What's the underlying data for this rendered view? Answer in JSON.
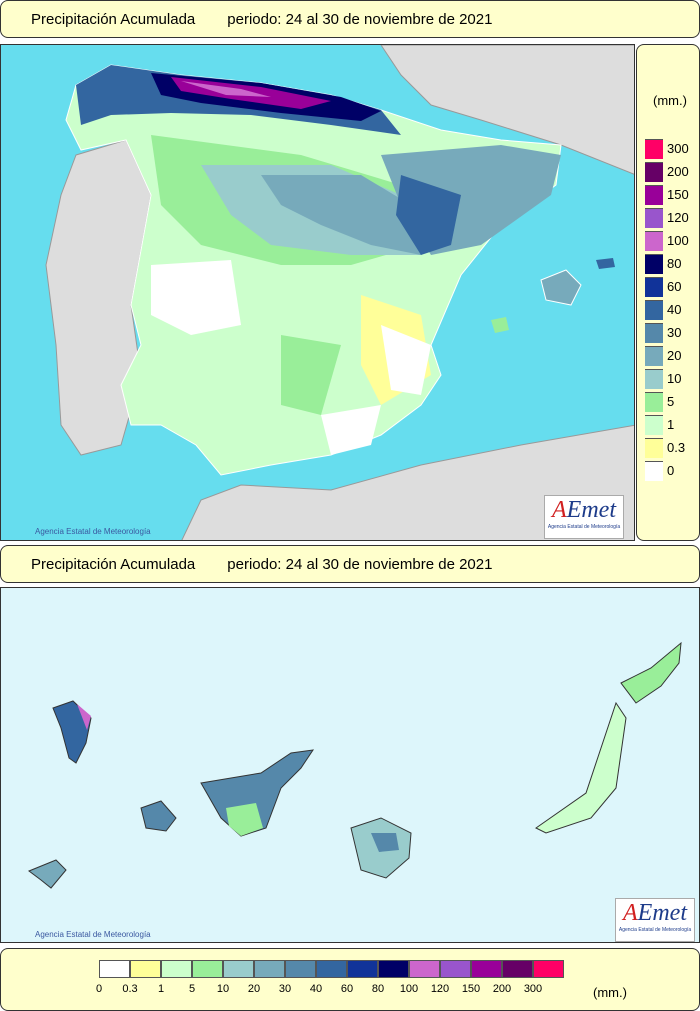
{
  "peninsula_header": {
    "title": "Precipitación Acumulada",
    "period": "periodo: 24 al 30 de noviembre de 2021"
  },
  "canarias_header": {
    "title": "Precipitación Acumulada",
    "period": "periodo: 24 al 30 de noviembre de 2021"
  },
  "credit": "Agencia Estatal de Meteorología",
  "logo": {
    "word_a": "A",
    "word_rest": "Emet",
    "subtitle": "Agencia Estatal de Meteorología"
  },
  "legend": {
    "unit": "(mm.)",
    "classes": [
      {
        "label": "0",
        "color": "#ffffff"
      },
      {
        "label": "0.3",
        "color": "#ffff99"
      },
      {
        "label": "1",
        "color": "#ccffcc"
      },
      {
        "label": "5",
        "color": "#99ee99"
      },
      {
        "label": "10",
        "color": "#99cccc"
      },
      {
        "label": "20",
        "color": "#77aabb"
      },
      {
        "label": "30",
        "color": "#5588aa"
      },
      {
        "label": "40",
        "color": "#3366a0"
      },
      {
        "label": "60",
        "color": "#113399"
      },
      {
        "label": "80",
        "color": "#000066"
      },
      {
        "label": "100",
        "color": "#cc66cc"
      },
      {
        "label": "120",
        "color": "#9955cc"
      },
      {
        "label": "150",
        "color": "#990099"
      },
      {
        "label": "200",
        "color": "#660066"
      },
      {
        "label": "300",
        "color": "#ff0066"
      }
    ]
  },
  "colors": {
    "sea": "#66ddee",
    "foreign_land": "#dddddd",
    "canarias_sea": "#ddf6fb"
  }
}
